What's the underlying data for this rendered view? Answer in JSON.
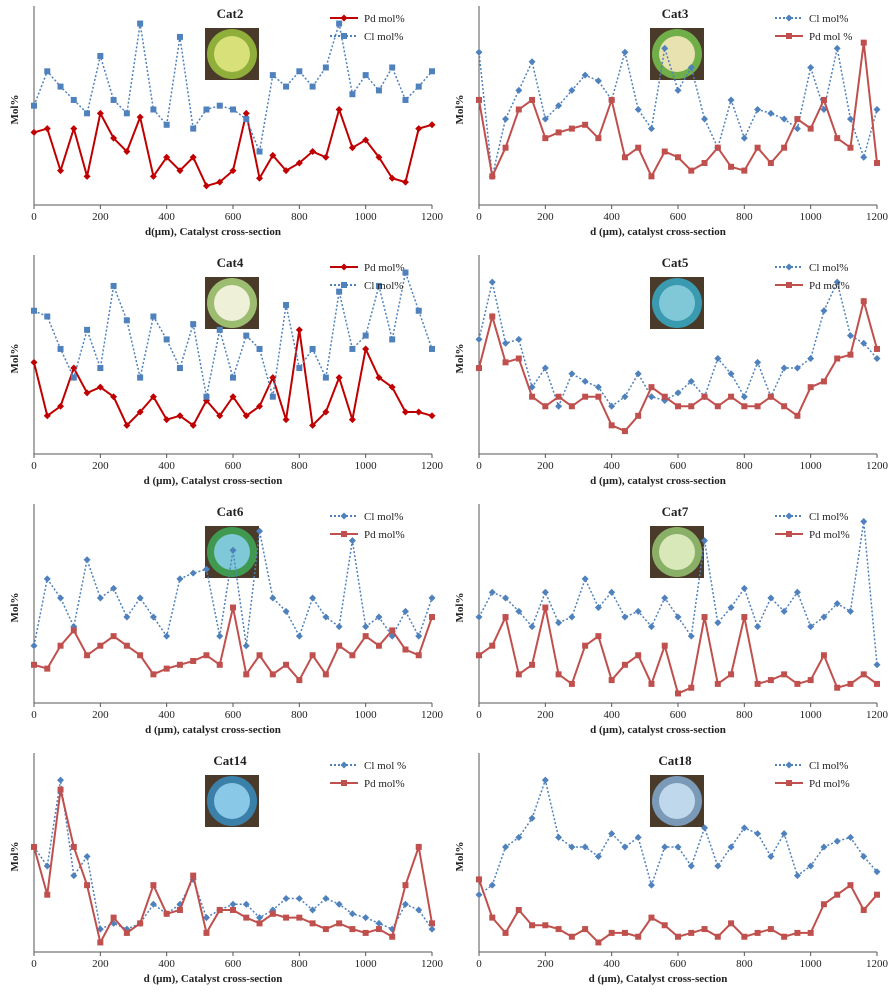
{
  "chart_data": [
    {
      "type": "line",
      "title": "Cat2",
      "x_label": "d(µm), Catalyst cross-section",
      "y_label": "Mol%",
      "xlim": [
        0,
        1200
      ],
      "ylim": [
        0,
        100
      ],
      "xticks": [
        0,
        200,
        400,
        600,
        800,
        1000,
        1200
      ],
      "x": [
        0,
        40,
        80,
        120,
        160,
        200,
        240,
        280,
        320,
        360,
        400,
        440,
        480,
        520,
        560,
        600,
        640,
        680,
        720,
        760,
        800,
        840,
        880,
        920,
        960,
        1000,
        1040,
        1080,
        1120,
        1160,
        1200
      ],
      "series": [
        {
          "name": "Pd mol%",
          "color": "#c00000",
          "style": "solid",
          "marker": "diamond",
          "values": [
            38,
            40,
            18,
            40,
            15,
            48,
            35,
            28,
            46,
            15,
            25,
            18,
            25,
            10,
            12,
            18,
            48,
            14,
            26,
            18,
            22,
            28,
            25,
            50,
            30,
            34,
            25,
            14,
            12,
            40,
            42
          ]
        },
        {
          "name": "Cl mol%",
          "color": "#4f81bd",
          "style": "dotted",
          "marker": "square",
          "values": [
            52,
            70,
            62,
            55,
            48,
            78,
            55,
            48,
            95,
            50,
            42,
            88,
            40,
            50,
            52,
            50,
            45,
            28,
            68,
            62,
            70,
            62,
            72,
            95,
            58,
            68,
            60,
            72,
            55,
            62,
            70
          ]
        }
      ]
    },
    {
      "type": "line",
      "title": "Cat3",
      "x_label": "d (µm), catalyst cross-section",
      "y_label": "Mol%",
      "xlim": [
        0,
        1200
      ],
      "ylim": [
        0,
        100
      ],
      "xticks": [
        0,
        200,
        400,
        600,
        800,
        1000,
        1200
      ],
      "x": [
        0,
        40,
        80,
        120,
        160,
        200,
        240,
        280,
        320,
        360,
        400,
        440,
        480,
        520,
        560,
        600,
        640,
        680,
        720,
        760,
        800,
        840,
        880,
        920,
        960,
        1000,
        1040,
        1080,
        1120,
        1160,
        1200
      ],
      "series": [
        {
          "name": "Cl mol%",
          "color": "#4f81bd",
          "style": "dotted",
          "marker": "diamond",
          "values": [
            80,
            15,
            45,
            60,
            75,
            45,
            52,
            60,
            68,
            65,
            55,
            80,
            50,
            40,
            82,
            60,
            72,
            45,
            30,
            55,
            35,
            50,
            48,
            45,
            40,
            72,
            50,
            82,
            45,
            25,
            50
          ]
        },
        {
          "name": "Pd mol %",
          "color": "#c0504d",
          "style": "solid",
          "marker": "square",
          "values": [
            55,
            15,
            30,
            50,
            55,
            35,
            38,
            40,
            42,
            35,
            55,
            25,
            30,
            15,
            28,
            25,
            18,
            22,
            30,
            20,
            18,
            30,
            22,
            30,
            45,
            40,
            55,
            35,
            30,
            85,
            22
          ]
        }
      ]
    },
    {
      "type": "line",
      "title": "Cat4",
      "x_label": "d (µm), Catalyst cross-section",
      "y_label": "Mol%",
      "xlim": [
        0,
        1200
      ],
      "ylim": [
        0,
        100
      ],
      "xticks": [
        0,
        200,
        400,
        600,
        800,
        1000,
        1200
      ],
      "x": [
        0,
        40,
        80,
        120,
        160,
        200,
        240,
        280,
        320,
        360,
        400,
        440,
        480,
        520,
        560,
        600,
        640,
        680,
        720,
        760,
        800,
        840,
        880,
        920,
        960,
        1000,
        1040,
        1080,
        1120,
        1160,
        1200
      ],
      "series": [
        {
          "name": "Pd mol%",
          "color": "#c00000",
          "style": "solid",
          "marker": "diamond",
          "values": [
            48,
            20,
            25,
            45,
            32,
            35,
            30,
            15,
            22,
            30,
            18,
            20,
            15,
            28,
            20,
            30,
            20,
            25,
            40,
            18,
            65,
            15,
            22,
            40,
            18,
            55,
            40,
            35,
            22,
            22,
            20
          ]
        },
        {
          "name": "Cl mol%",
          "color": "#4f81bd",
          "style": "dotted",
          "marker": "square",
          "values": [
            75,
            72,
            55,
            40,
            65,
            45,
            88,
            70,
            40,
            72,
            60,
            45,
            68,
            30,
            65,
            40,
            62,
            55,
            30,
            78,
            45,
            55,
            40,
            85,
            55,
            62,
            88,
            60,
            95,
            75,
            55
          ]
        }
      ]
    },
    {
      "type": "line",
      "title": "Cat5",
      "x_label": "d (µm), catalyst cross-section",
      "y_label": "Mol%",
      "xlim": [
        0,
        1200
      ],
      "ylim": [
        0,
        100
      ],
      "xticks": [
        0,
        200,
        400,
        600,
        800,
        1000,
        1200
      ],
      "x": [
        0,
        40,
        80,
        120,
        160,
        200,
        240,
        280,
        320,
        360,
        400,
        440,
        480,
        520,
        560,
        600,
        640,
        680,
        720,
        760,
        800,
        840,
        880,
        920,
        960,
        1000,
        1040,
        1080,
        1120,
        1160,
        1200
      ],
      "series": [
        {
          "name": "Cl mol%",
          "color": "#4f81bd",
          "style": "dotted",
          "marker": "diamond",
          "values": [
            60,
            90,
            58,
            60,
            35,
            45,
            25,
            42,
            38,
            35,
            25,
            30,
            42,
            30,
            28,
            32,
            38,
            30,
            50,
            42,
            30,
            48,
            30,
            45,
            45,
            50,
            75,
            90,
            62,
            58,
            50
          ]
        },
        {
          "name": "Pd mol%",
          "color": "#c0504d",
          "style": "solid",
          "marker": "square",
          "values": [
            45,
            72,
            48,
            50,
            30,
            25,
            30,
            25,
            30,
            30,
            15,
            12,
            20,
            35,
            30,
            25,
            25,
            30,
            25,
            30,
            25,
            25,
            30,
            25,
            20,
            35,
            38,
            50,
            52,
            80,
            55
          ]
        }
      ]
    },
    {
      "type": "line",
      "title": "Cat6",
      "x_label": "d (µm), catalyst cross-section",
      "y_label": "Mol%",
      "xlim": [
        0,
        1200
      ],
      "ylim": [
        0,
        100
      ],
      "xticks": [
        0,
        200,
        400,
        600,
        800,
        1000,
        1200
      ],
      "x": [
        0,
        40,
        80,
        120,
        160,
        200,
        240,
        280,
        320,
        360,
        400,
        440,
        480,
        520,
        560,
        600,
        640,
        680,
        720,
        760,
        800,
        840,
        880,
        920,
        960,
        1000,
        1040,
        1080,
        1120,
        1160,
        1200
      ],
      "series": [
        {
          "name": "Cl mol%",
          "color": "#4f81bd",
          "style": "dotted",
          "marker": "diamond",
          "values": [
            30,
            65,
            55,
            40,
            75,
            55,
            60,
            45,
            55,
            45,
            35,
            65,
            68,
            70,
            35,
            80,
            30,
            90,
            55,
            48,
            35,
            55,
            45,
            40,
            85,
            40,
            45,
            35,
            48,
            35,
            55
          ]
        },
        {
          "name": "Pd mol%",
          "color": "#c0504d",
          "style": "solid",
          "marker": "square",
          "values": [
            20,
            18,
            30,
            38,
            25,
            30,
            35,
            30,
            25,
            15,
            18,
            20,
            22,
            25,
            20,
            50,
            15,
            25,
            15,
            20,
            12,
            25,
            15,
            30,
            25,
            35,
            30,
            38,
            28,
            25,
            45
          ]
        }
      ]
    },
    {
      "type": "line",
      "title": "Cat7",
      "x_label": "d (µm), catalyst cross-section",
      "y_label": "Mol%",
      "xlim": [
        0,
        1200
      ],
      "ylim": [
        0,
        100
      ],
      "xticks": [
        0,
        200,
        400,
        600,
        800,
        1000,
        1200
      ],
      "x": [
        0,
        40,
        80,
        120,
        160,
        200,
        240,
        280,
        320,
        360,
        400,
        440,
        480,
        520,
        560,
        600,
        640,
        680,
        720,
        760,
        800,
        840,
        880,
        920,
        960,
        1000,
        1040,
        1080,
        1120,
        1160,
        1200
      ],
      "series": [
        {
          "name": "Cl mol%",
          "color": "#4f81bd",
          "style": "dotted",
          "marker": "diamond",
          "values": [
            45,
            58,
            55,
            48,
            40,
            58,
            42,
            45,
            65,
            50,
            58,
            45,
            48,
            40,
            55,
            45,
            35,
            85,
            42,
            50,
            60,
            40,
            55,
            48,
            58,
            40,
            45,
            52,
            48,
            95,
            20
          ]
        },
        {
          "name": "Pd mol%",
          "color": "#c0504d",
          "style": "solid",
          "marker": "square",
          "values": [
            25,
            30,
            45,
            15,
            20,
            50,
            15,
            10,
            30,
            35,
            12,
            20,
            25,
            10,
            30,
            5,
            8,
            45,
            10,
            15,
            45,
            10,
            12,
            15,
            10,
            12,
            25,
            8,
            10,
            15,
            10
          ]
        }
      ]
    },
    {
      "type": "line",
      "title": "Cat14",
      "x_label": "d (µm), Catalyst cross-section",
      "y_label": "Mol%",
      "xlim": [
        0,
        1200
      ],
      "ylim": [
        0,
        100
      ],
      "xticks": [
        0,
        200,
        400,
        600,
        800,
        1000,
        1200
      ],
      "x": [
        0,
        40,
        80,
        120,
        160,
        200,
        240,
        280,
        320,
        360,
        400,
        440,
        480,
        520,
        560,
        600,
        640,
        680,
        720,
        760,
        800,
        840,
        880,
        920,
        960,
        1000,
        1040,
        1080,
        1120,
        1160,
        1200
      ],
      "series": [
        {
          "name": "Cl mol %",
          "color": "#4f81bd",
          "style": "dotted",
          "marker": "diamond",
          "values": [
            55,
            45,
            90,
            40,
            50,
            12,
            15,
            12,
            15,
            25,
            20,
            25,
            38,
            18,
            22,
            25,
            25,
            18,
            22,
            28,
            28,
            22,
            28,
            25,
            20,
            18,
            15,
            12,
            25,
            22,
            12
          ]
        },
        {
          "name": "Pd mol%",
          "color": "#c0504d",
          "style": "solid",
          "marker": "square",
          "values": [
            55,
            30,
            85,
            55,
            35,
            5,
            18,
            10,
            15,
            35,
            20,
            22,
            40,
            10,
            22,
            22,
            18,
            15,
            20,
            18,
            18,
            15,
            12,
            15,
            12,
            10,
            12,
            8,
            35,
            55,
            15
          ]
        }
      ]
    },
    {
      "type": "line",
      "title": "Cat18",
      "x_label": "d (µm), Catalyst cross-section",
      "y_label": "Mol%",
      "xlim": [
        0,
        1200
      ],
      "ylim": [
        0,
        100
      ],
      "xticks": [
        0,
        200,
        400,
        600,
        800,
        1000,
        1200
      ],
      "x": [
        0,
        40,
        80,
        120,
        160,
        200,
        240,
        280,
        320,
        360,
        400,
        440,
        480,
        520,
        560,
        600,
        640,
        680,
        720,
        760,
        800,
        840,
        880,
        920,
        960,
        1000,
        1040,
        1080,
        1120,
        1160,
        1200
      ],
      "series": [
        {
          "name": "Cl mol%",
          "color": "#4f81bd",
          "style": "dotted",
          "marker": "diamond",
          "values": [
            30,
            35,
            55,
            60,
            70,
            90,
            60,
            55,
            55,
            50,
            62,
            55,
            60,
            35,
            55,
            55,
            45,
            65,
            45,
            55,
            65,
            62,
            50,
            62,
            40,
            45,
            55,
            58,
            60,
            50,
            42
          ]
        },
        {
          "name": "Pd mol%",
          "color": "#c0504d",
          "style": "solid",
          "marker": "square",
          "values": [
            38,
            18,
            10,
            22,
            14,
            14,
            12,
            8,
            12,
            5,
            10,
            10,
            8,
            18,
            14,
            8,
            10,
            12,
            8,
            15,
            8,
            10,
            12,
            8,
            10,
            10,
            25,
            30,
            35,
            22,
            30
          ]
        }
      ]
    }
  ]
}
